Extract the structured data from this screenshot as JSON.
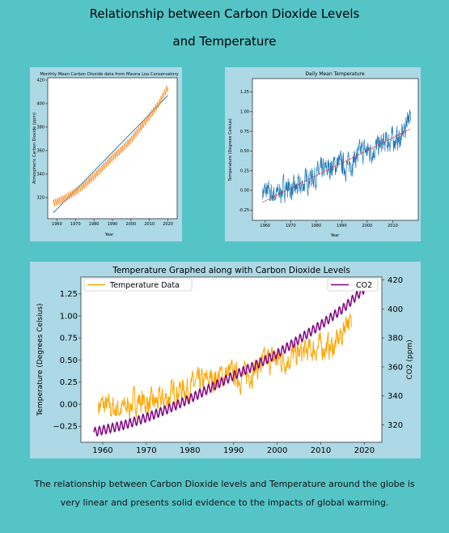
{
  "page": {
    "title_line1": "Relationship between Carbon Dioxide Levels",
    "title_line2": "and Temperature",
    "caption": "The relationship between Carbon Dioxide levels and Temperature around the globe is very linear and presents solid evidence to the impacts of global warming."
  },
  "colors": {
    "background": "#55c4c7",
    "panel": "#acd9e5",
    "co2_orange": "#f28c28",
    "temp_blue": "#1f77b4",
    "temp_orange": "#ffa500",
    "co2_purple": "#800080",
    "fit_line": "#1f77b4",
    "fit_red": "#d62728"
  },
  "chart_data": [
    {
      "type": "line",
      "title": "Monthly Mean Carbon Dioxide data from Mauna Loa Conservatory",
      "xlabel": "Year",
      "ylabel": "Atmospheric Carbon Dioxide (ppm)",
      "xlim": [
        1955,
        2025
      ],
      "ylim": [
        302,
        422
      ],
      "xticks": [
        1960,
        1970,
        1980,
        1990,
        2000,
        2010,
        2020
      ],
      "yticks": [
        320,
        340,
        360,
        380,
        400,
        420
      ],
      "series": [
        {
          "x": [
            1958,
            1965,
            1970,
            1975,
            1980,
            1985,
            1990,
            1995,
            2000,
            2005,
            2010,
            2015,
            2020
          ],
          "values": [
            315,
            320,
            325,
            331,
            338,
            346,
            354,
            361,
            369,
            379,
            389,
            400,
            414
          ],
          "seasonal_amplitude_ppm": 3,
          "color": "#f28c28"
        },
        {
          "x": [
            1958,
            2020
          ],
          "values": [
            307,
            407
          ],
          "color": "#1f77b4"
        }
      ],
      "grid": false
    },
    {
      "type": "line",
      "title": "Daily Mean Temperature",
      "xlabel": "Year",
      "ylabel": "Temperature (Degrees Celsius)",
      "xlim": [
        1955,
        2020
      ],
      "ylim": [
        -0.38,
        1.42
      ],
      "xticks": [
        1960,
        1970,
        1980,
        1990,
        2000,
        2010
      ],
      "yticks": [
        -0.25,
        0.0,
        0.25,
        0.5,
        0.75,
        1.0,
        1.25
      ],
      "series": [
        {
          "x": [
            1959,
            1962,
            1965,
            1968,
            1971,
            1974,
            1977,
            1980,
            1983,
            1986,
            1989,
            1992,
            1995,
            1998,
            2001,
            2004,
            2007,
            2010,
            2013,
            2015,
            2016,
            2017
          ],
          "values": [
            0.0,
            -0.05,
            -0.05,
            0.05,
            0.0,
            0.05,
            0.15,
            0.2,
            0.25,
            0.3,
            0.35,
            0.3,
            0.4,
            0.5,
            0.5,
            0.55,
            0.6,
            0.65,
            0.65,
            0.8,
            1.0,
            0.85
          ],
          "noise_amplitude": 0.18,
          "color": "#1f77b4"
        },
        {
          "x": [
            1959,
            2017
          ],
          "values": [
            -0.15,
            0.78
          ],
          "color": "#d62728"
        }
      ],
      "grid": false
    },
    {
      "type": "line",
      "title": "Temperature Graphed along with Carbon Dioxide Levels",
      "xlabel": "",
      "ylabel": "Temperature (Degrees Celsius)",
      "ylabel_right": "CO2 (ppm)",
      "xlim": [
        1955,
        2024
      ],
      "ylim": [
        -0.43,
        1.44
      ],
      "ylim_right": [
        308,
        422
      ],
      "xticks": [
        1960,
        1970,
        1980,
        1990,
        2000,
        2010,
        2020
      ],
      "yticks": [
        -0.25,
        0.0,
        0.25,
        0.5,
        0.75,
        1.0,
        1.25
      ],
      "yticks_right": [
        320,
        340,
        360,
        380,
        400,
        420
      ],
      "series": [
        {
          "name": "Temperature Data",
          "axis": "left",
          "x": [
            1959,
            1962,
            1965,
            1968,
            1971,
            1974,
            1977,
            1980,
            1983,
            1986,
            1989,
            1992,
            1995,
            1998,
            2001,
            2004,
            2007,
            2010,
            2013,
            2015,
            2016,
            2017
          ],
          "values": [
            0.0,
            -0.05,
            -0.05,
            0.05,
            0.0,
            0.05,
            0.15,
            0.2,
            0.25,
            0.3,
            0.35,
            0.3,
            0.4,
            0.5,
            0.5,
            0.55,
            0.6,
            0.65,
            0.65,
            0.8,
            1.0,
            0.85
          ],
          "noise_amplitude": 0.18,
          "color": "#ffa500"
        },
        {
          "name": "CO2",
          "axis": "right",
          "x": [
            1958,
            1965,
            1970,
            1975,
            1980,
            1985,
            1990,
            1995,
            2000,
            2005,
            2010,
            2015,
            2020
          ],
          "values": [
            315,
            320,
            325,
            331,
            338,
            346,
            354,
            361,
            369,
            379,
            389,
            400,
            414
          ],
          "seasonal_amplitude_ppm": 3,
          "color": "#800080"
        }
      ],
      "legend": [
        "top-left",
        "top-right"
      ],
      "grid": false
    }
  ]
}
